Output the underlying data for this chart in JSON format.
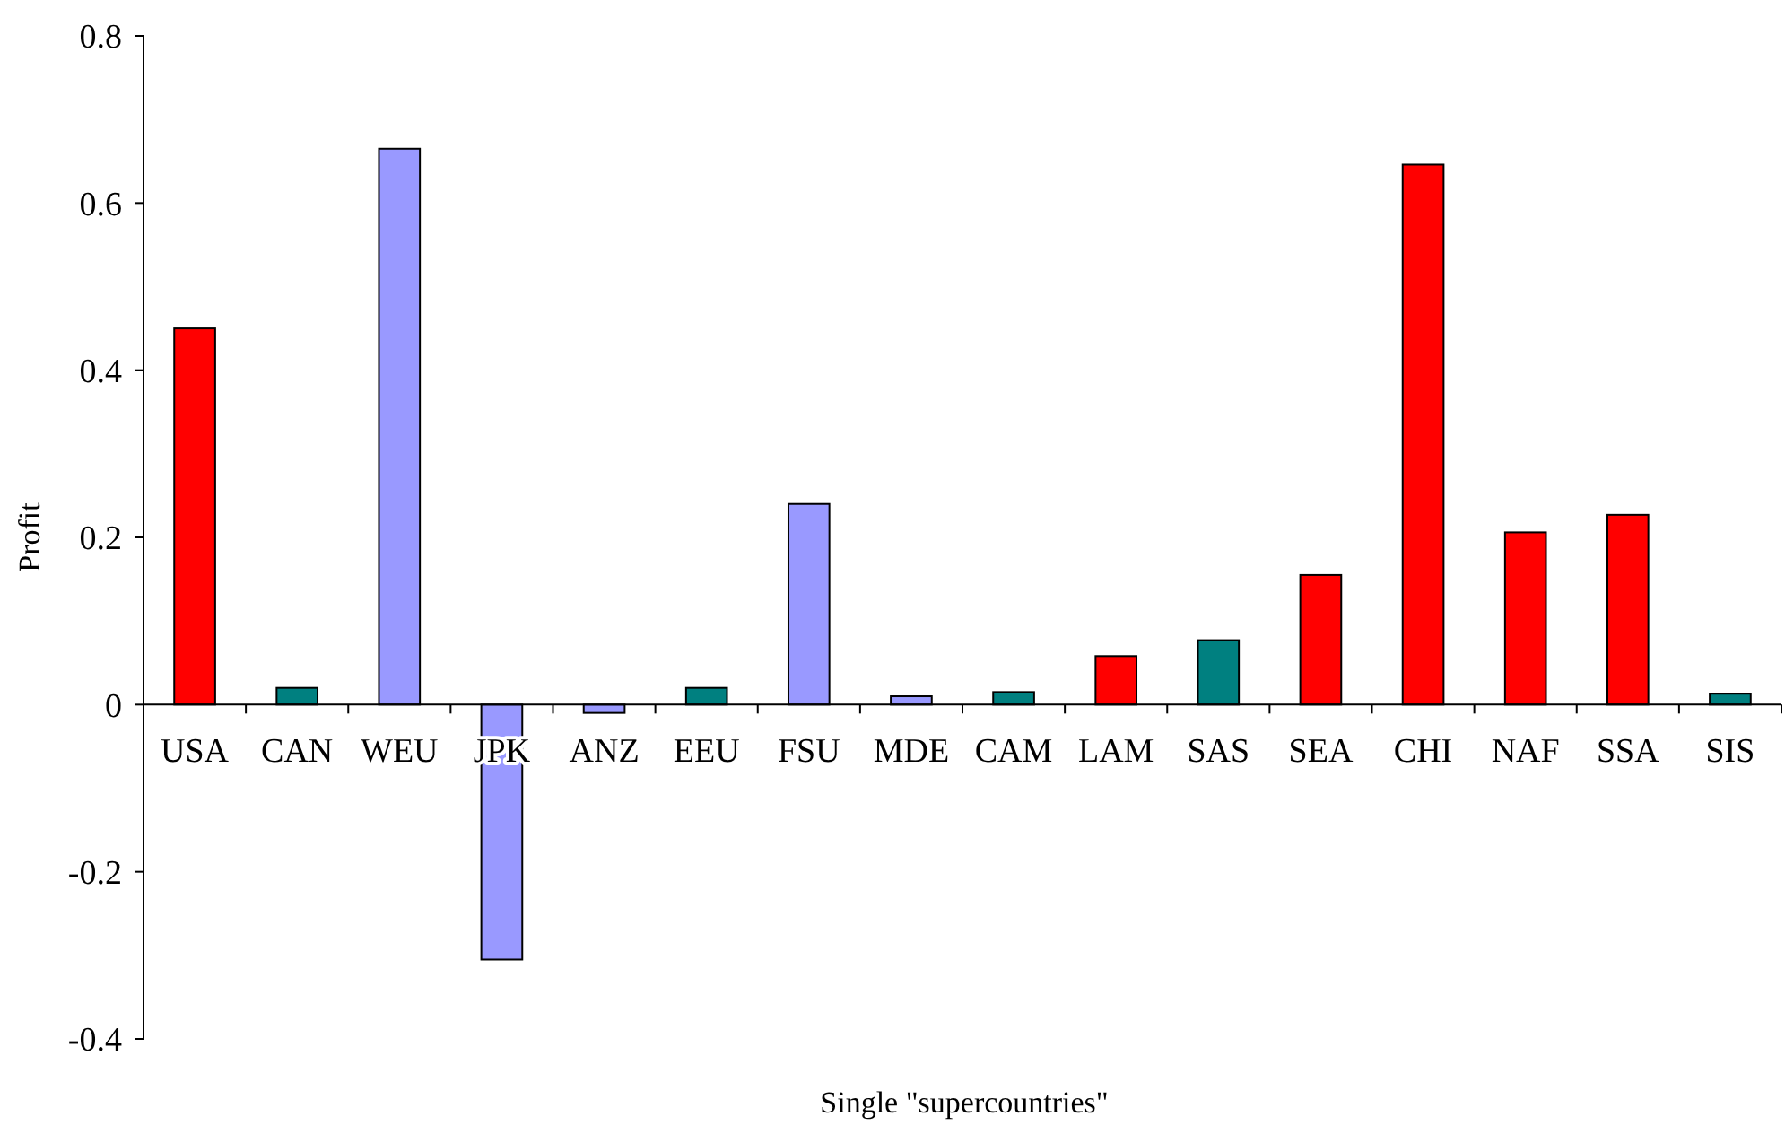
{
  "chart_data": {
    "type": "bar",
    "xlabel": "Single \"supercountries\"",
    "ylabel": "Profit",
    "categories": [
      "USA",
      "CAN",
      "WEU",
      "JPK",
      "ANZ",
      "EEU",
      "FSU",
      "MDE",
      "CAM",
      "LAM",
      "SAS",
      "SEA",
      "CHI",
      "NAF",
      "SSA",
      "SIS"
    ],
    "values": [
      0.45,
      0.02,
      0.665,
      -0.305,
      -0.01,
      0.02,
      0.24,
      0.01,
      0.015,
      0.058,
      0.077,
      0.155,
      0.646,
      0.206,
      0.227,
      0.013
    ],
    "colors": [
      "#ff0000",
      "#008080",
      "#9999ff",
      "#9999ff",
      "#9999ff",
      "#008080",
      "#9999ff",
      "#9999ff",
      "#008080",
      "#ff0000",
      "#008080",
      "#ff0000",
      "#ff0000",
      "#ff0000",
      "#ff0000",
      "#008080"
    ],
    "ylim": [
      -0.4,
      0.8
    ],
    "yticks": [
      {
        "value": -0.4,
        "label": "-0.4"
      },
      {
        "value": -0.2,
        "label": "-0.2"
      },
      {
        "value": 0,
        "label": "0"
      },
      {
        "value": 0.2,
        "label": "0.2"
      },
      {
        "value": 0.4,
        "label": "0.4"
      },
      {
        "value": 0.6,
        "label": "0.6"
      },
      {
        "value": 0.8,
        "label": "0.8"
      }
    ],
    "grid": false
  }
}
